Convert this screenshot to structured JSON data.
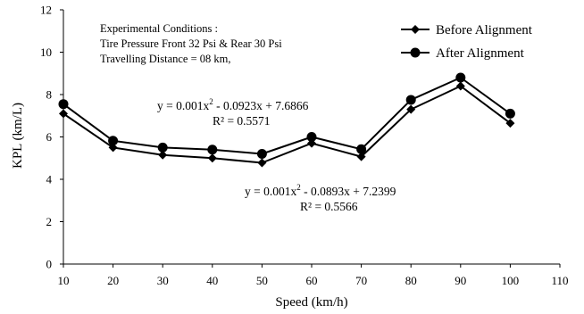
{
  "chart_data": {
    "type": "line",
    "xlabel": "Speed (km/h)",
    "ylabel": "KPL (km/L)",
    "xlim": [
      10,
      110
    ],
    "ylim": [
      0,
      12
    ],
    "xticks": [
      10,
      20,
      30,
      40,
      50,
      60,
      70,
      80,
      90,
      100,
      110
    ],
    "yticks": [
      0,
      2,
      4,
      6,
      8,
      10,
      12
    ],
    "grid": false,
    "legend_position": "top-right",
    "x": [
      10,
      20,
      30,
      40,
      50,
      60,
      70,
      80,
      90,
      100
    ],
    "series": [
      {
        "name": "Before Alignment",
        "marker": "diamond",
        "color": "#000000",
        "values": [
          7.1,
          5.5,
          5.15,
          5.0,
          4.78,
          5.7,
          5.07,
          7.3,
          8.4,
          6.65
        ]
      },
      {
        "name": "After Alignment",
        "marker": "circle",
        "color": "#000000",
        "values": [
          7.55,
          5.82,
          5.5,
          5.4,
          5.2,
          6.0,
          5.42,
          7.75,
          8.8,
          7.1
        ]
      }
    ],
    "annotations": {
      "conditions": [
        "Experimental Conditions :",
        "Tire Pressure Front 32 Psi  & Rear 30 Psi",
        "Travelling Distance = 08 km,"
      ],
      "after_equation": {
        "prefix": "y = 0.001x",
        "sup": "2",
        "suffix": " - 0.0923x + 7.6866",
        "r2_label": "R²",
        "r2_value": " = 0.5571"
      },
      "before_equation": {
        "prefix": "y = 0.001x",
        "sup": "2",
        "suffix": " - 0.0893x + 7.2399",
        "r2_label": "R²",
        "r2_value": " = 0.5566"
      }
    }
  }
}
